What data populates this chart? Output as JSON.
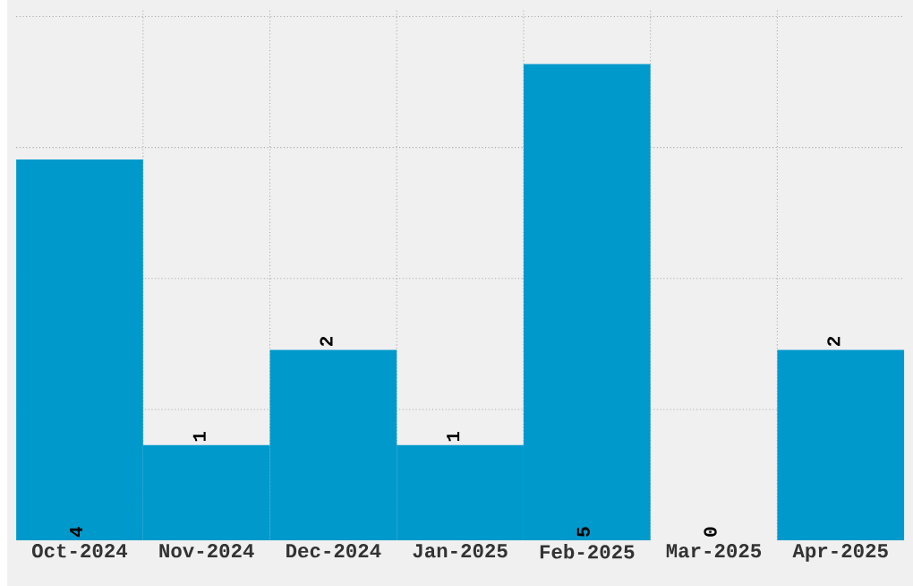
{
  "chart_data": {
    "type": "bar",
    "categories": [
      "Oct-2024",
      "Nov-2024",
      "Dec-2024",
      "Jan-2025",
      "Feb-2025",
      "Mar-2025",
      "Apr-2025"
    ],
    "values": [
      4,
      1,
      2,
      1,
      5,
      0,
      2
    ],
    "color": "#0099cc",
    "ylim": [
      0,
      5.58
    ],
    "yticks": [
      {
        "value": 1.375,
        "label": null
      },
      {
        "value": 2.75,
        "label": null
      },
      {
        "value": 4.125,
        "label": null
      },
      {
        "value": 5.5,
        "label": null
      }
    ],
    "grid": true,
    "data_labels": true,
    "tick_labels": "x"
  }
}
